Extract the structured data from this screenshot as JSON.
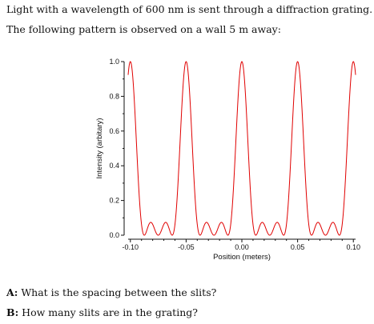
{
  "problem": {
    "intro_line1": "Light with a wavelength of 600 nm is sent through a diffraction grating.",
    "intro_line2": "The following pattern is observed on a wall 5 m away:",
    "question_a_label": "A:",
    "question_a_text": "What is the spacing between the slits?",
    "question_b_label": "B:",
    "question_b_text": "How many slits are in the grating?"
  },
  "chart_data": {
    "type": "line",
    "xlabel": "Position (meters)",
    "ylabel": "Intensity (arbitary)",
    "xlim": [
      -0.102,
      0.102
    ],
    "ylim": [
      0,
      1.0
    ],
    "x_ticks": [
      -0.1,
      -0.05,
      0.0,
      0.05,
      0.1
    ],
    "x_tick_labels": [
      "-0.10",
      "-0.05",
      "0.00",
      "0.05",
      "0.10"
    ],
    "y_ticks": [
      0.0,
      0.2,
      0.4,
      0.6,
      0.8,
      1.0
    ],
    "y_tick_labels": [
      "0.0",
      "0.2",
      "0.4",
      "0.6",
      "0.8",
      "1.0"
    ],
    "principal_maxima_x": [
      -0.1,
      -0.05,
      0.0,
      0.05,
      0.1
    ],
    "slit_count_N": 4,
    "color": "#e00000",
    "grid": false
  }
}
